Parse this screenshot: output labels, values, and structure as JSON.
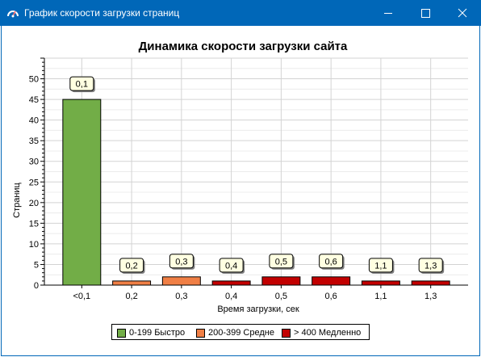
{
  "window": {
    "title": "График скорости загрузки страниц",
    "app_icon": "speedometer-icon",
    "controls": [
      "minimize-icon",
      "maximize-icon",
      "close-icon"
    ],
    "titlebar_color": "#0067b8"
  },
  "chart_data": {
    "type": "bar",
    "title": "Динамика скорости загрузки сайта",
    "xlabel": "Время загрузки, сек",
    "ylabel": "Страниц",
    "ylim": [
      0,
      55
    ],
    "yticks": [
      0,
      5,
      10,
      15,
      20,
      25,
      30,
      35,
      40,
      45,
      50
    ],
    "grid": true,
    "categories": [
      "<0,1",
      "0,2",
      "0,3",
      "0,4",
      "0,5",
      "0,6",
      "1,1",
      "1,3"
    ],
    "values": [
      45,
      1,
      2,
      1,
      2,
      2,
      1,
      1
    ],
    "bar_labels": [
      "0,1",
      "0,2",
      "0,3",
      "0,4",
      "0,5",
      "0,6",
      "1,1",
      "1,3"
    ],
    "bar_groups": [
      0,
      1,
      1,
      2,
      2,
      2,
      2,
      2
    ],
    "legend_position": "bottom",
    "legend": [
      {
        "label": "0-199 Быстро",
        "color": "#72ad47"
      },
      {
        "label": "200-399 Средне",
        "color": "#f07f45"
      },
      {
        "label": "> 400 Медленно",
        "color": "#c20000"
      }
    ]
  }
}
